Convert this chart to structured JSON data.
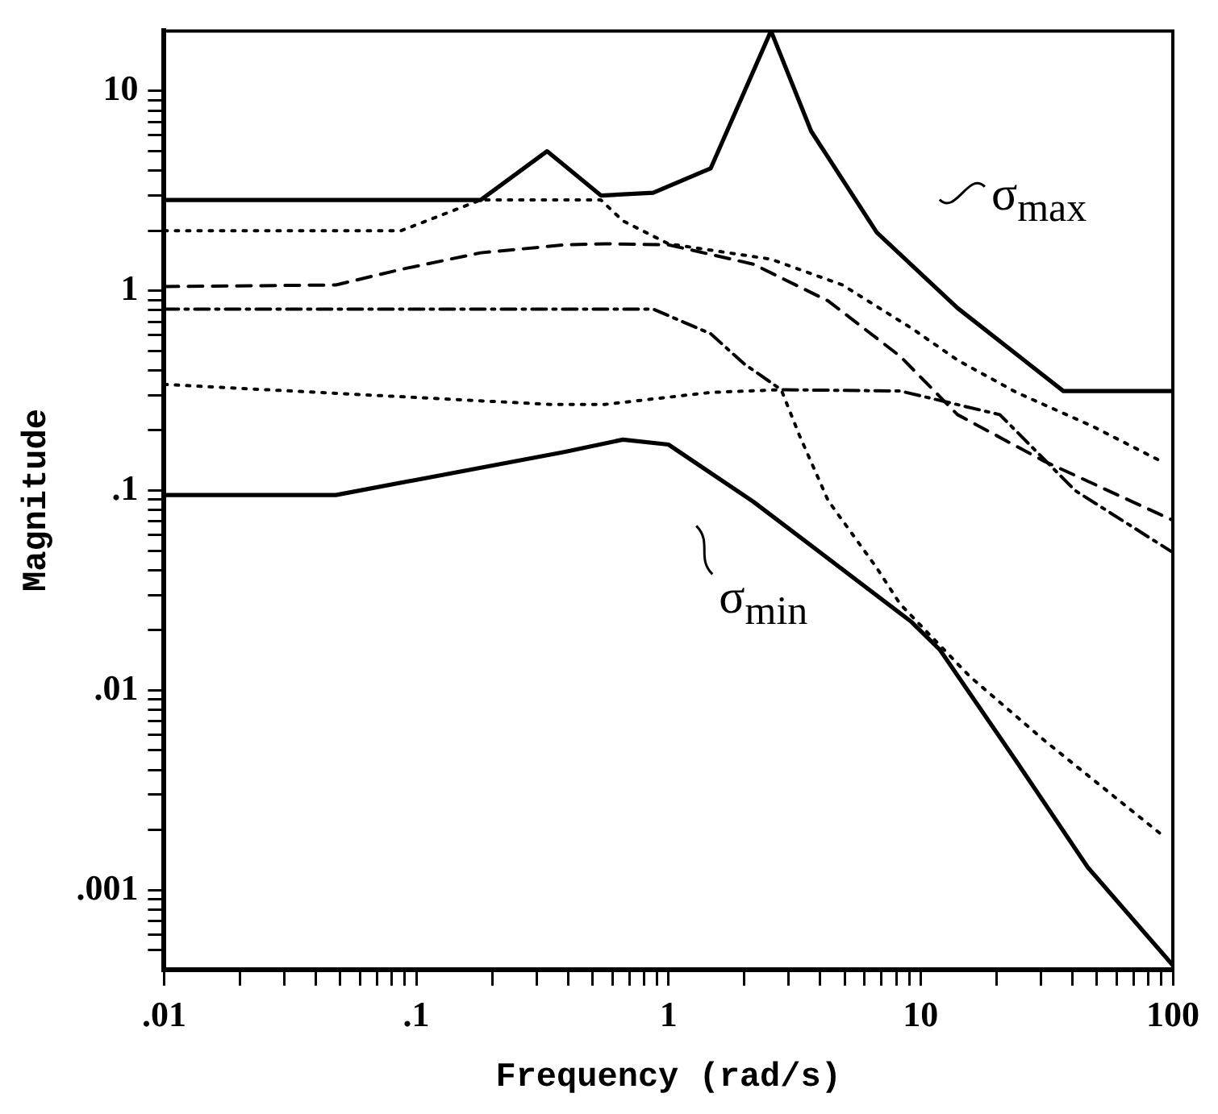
{
  "chart_data": {
    "type": "line",
    "xlabel": "Frequency (rad/s)",
    "ylabel": "Magnitude",
    "log": "xy",
    "grid": false,
    "marker": "none",
    "xlim": [
      0.01,
      100
    ],
    "ylim": [
      0.0004,
      20
    ],
    "xticks": [
      {
        "value": 0.01,
        "label": ".01"
      },
      {
        "value": 0.02,
        "label": null
      },
      {
        "value": 0.03,
        "label": null
      },
      {
        "value": 0.04,
        "label": null
      },
      {
        "value": 0.05,
        "label": null
      },
      {
        "value": 0.06,
        "label": null
      },
      {
        "value": 0.07,
        "label": null
      },
      {
        "value": 0.08,
        "label": null
      },
      {
        "value": 0.09,
        "label": null
      },
      {
        "value": 0.1,
        "label": ".1"
      },
      {
        "value": 0.2,
        "label": null
      },
      {
        "value": 0.3,
        "label": null
      },
      {
        "value": 0.4,
        "label": null
      },
      {
        "value": 0.5,
        "label": null
      },
      {
        "value": 0.6,
        "label": null
      },
      {
        "value": 0.7,
        "label": null
      },
      {
        "value": 0.8,
        "label": null
      },
      {
        "value": 0.9,
        "label": null
      },
      1,
      {
        "value": 2,
        "label": null
      },
      {
        "value": 3,
        "label": null
      },
      {
        "value": 4,
        "label": null
      },
      {
        "value": 5,
        "label": null
      },
      {
        "value": 6,
        "label": null
      },
      {
        "value": 7,
        "label": null
      },
      {
        "value": 8,
        "label": null
      },
      {
        "value": 9,
        "label": null
      },
      10,
      {
        "value": 20,
        "label": null
      },
      {
        "value": 30,
        "label": null
      },
      {
        "value": 40,
        "label": null
      },
      {
        "value": 50,
        "label": null
      },
      {
        "value": 60,
        "label": null
      },
      {
        "value": 70,
        "label": null
      },
      {
        "value": 80,
        "label": null
      },
      {
        "value": 90,
        "label": null
      },
      100
    ],
    "yticks": [
      {
        "value": 0.0005,
        "label": null
      },
      {
        "value": 0.0006,
        "label": null
      },
      {
        "value": 0.0007,
        "label": null
      },
      {
        "value": 0.0008,
        "label": null
      },
      {
        "value": 0.0009,
        "label": null
      },
      {
        "value": 0.001,
        "label": ".001"
      },
      {
        "value": 0.002,
        "label": null
      },
      {
        "value": 0.003,
        "label": null
      },
      {
        "value": 0.004,
        "label": null
      },
      {
        "value": 0.005,
        "label": null
      },
      {
        "value": 0.006,
        "label": null
      },
      {
        "value": 0.007,
        "label": null
      },
      {
        "value": 0.008,
        "label": null
      },
      {
        "value": 0.009,
        "label": null
      },
      {
        "value": 0.01,
        "label": ".01"
      },
      {
        "value": 0.02,
        "label": null
      },
      {
        "value": 0.03,
        "label": null
      },
      {
        "value": 0.04,
        "label": null
      },
      {
        "value": 0.05,
        "label": null
      },
      {
        "value": 0.06,
        "label": null
      },
      {
        "value": 0.07,
        "label": null
      },
      {
        "value": 0.08,
        "label": null
      },
      {
        "value": 0.09,
        "label": null
      },
      {
        "value": 0.1,
        "label": ".1"
      },
      {
        "value": 0.2,
        "label": null
      },
      {
        "value": 0.3,
        "label": null
      },
      {
        "value": 0.4,
        "label": null
      },
      {
        "value": 0.5,
        "label": null
      },
      {
        "value": 0.6,
        "label": null
      },
      {
        "value": 0.7,
        "label": null
      },
      {
        "value": 0.8,
        "label": null
      },
      {
        "value": 0.9,
        "label": null
      },
      1,
      {
        "value": 2,
        "label": null
      },
      {
        "value": 3,
        "label": null
      },
      {
        "value": 4,
        "label": null
      },
      {
        "value": 5,
        "label": null
      },
      {
        "value": 6,
        "label": null
      },
      {
        "value": 7,
        "label": null
      },
      {
        "value": 8,
        "label": null
      },
      {
        "value": 9,
        "label": null
      },
      10
    ],
    "series": [
      {
        "name": "σ$_{max}$",
        "color": "#000000",
        "line_style": "solid",
        "x": [
          0.01,
          0.18,
          0.33,
          0.54,
          0.87,
          1.47,
          2.55,
          3.68,
          6.7,
          14,
          36.8,
          100
        ],
        "values": [
          2.85,
          2.85,
          5.0,
          3.0,
          3.1,
          4.1,
          20,
          6.3,
          1.96,
          0.82,
          0.315,
          0.315
        ]
      },
      {
        "name": "σ$_{min}$",
        "color": "#000000",
        "line_style": "solid",
        "x": [
          0.01,
          0.048,
          0.386,
          0.66,
          1.0,
          2.17,
          9.2,
          11.9,
          24,
          46,
          100
        ],
        "values": [
          0.095,
          0.095,
          0.156,
          0.18,
          0.17,
          0.088,
          0.022,
          0.016,
          0.0044,
          0.0013,
          0.00042
        ]
      },
      {
        "color": "#000000",
        "line_style": "dotted",
        "x": [
          0.01,
          0.087,
          0.18,
          0.54,
          0.66,
          1.0,
          2.55,
          4.9,
          9.2,
          14,
          24,
          48,
          90
        ],
        "values": [
          2.0,
          2.0,
          2.85,
          2.85,
          2.24,
          1.72,
          1.44,
          1.07,
          0.65,
          0.45,
          0.31,
          0.21,
          0.14
        ]
      },
      {
        "color": "#000000",
        "line_style": "dashed",
        "x": [
          0.01,
          0.048,
          0.087,
          0.18,
          0.39,
          0.56,
          1.0,
          2.17,
          4.3,
          8.3,
          14,
          31,
          100
        ],
        "values": [
          1.05,
          1.07,
          1.28,
          1.55,
          1.7,
          1.72,
          1.7,
          1.36,
          0.89,
          0.47,
          0.24,
          0.14,
          0.071
        ]
      },
      {
        "color": "#000000",
        "line_style": "dashdot",
        "x": [
          0.01,
          0.87,
          1.47,
          2.0,
          2.8,
          8.3,
          20.6,
          41,
          100
        ],
        "values": [
          0.81,
          0.81,
          0.61,
          0.43,
          0.32,
          0.315,
          0.24,
          0.1,
          0.049
        ]
      },
      {
        "color": "#000000",
        "line_style": "dotted",
        "x": [
          0.01,
          0.34,
          0.56,
          1.47,
          2.8,
          3.3,
          4.3,
          6.7,
          8.3,
          15.7,
          31,
          90
        ],
        "values": [
          0.34,
          0.27,
          0.27,
          0.31,
          0.32,
          0.19,
          0.089,
          0.041,
          0.027,
          0.0117,
          0.0056,
          0.0019
        ]
      }
    ]
  }
}
